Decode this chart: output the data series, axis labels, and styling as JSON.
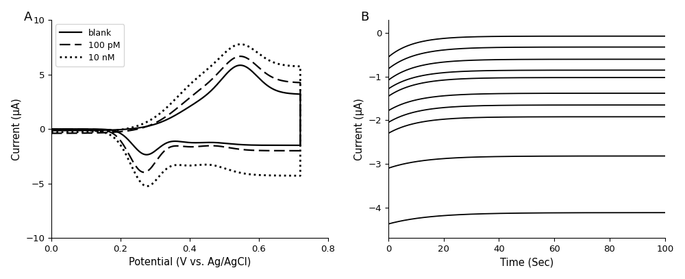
{
  "panel_A": {
    "label": "A",
    "xlabel": "Potential (V vs. Ag/AgCl)",
    "ylabel": "Current (μA)",
    "xlim": [
      0.0,
      0.8
    ],
    "ylim": [
      -10,
      10
    ],
    "xticks": [
      0.0,
      0.2,
      0.4,
      0.6,
      0.8
    ],
    "yticks": [
      -10,
      -5,
      0,
      5,
      10
    ]
  },
  "panel_B": {
    "label": "B",
    "xlabel": "Time (Sec)",
    "ylabel": "Current (μA)",
    "xlim": [
      0,
      100
    ],
    "ylim": [
      -4.7,
      0.3
    ],
    "xticks": [
      0,
      20,
      40,
      60,
      80,
      100
    ],
    "yticks": [
      -4,
      -3,
      -2,
      -1,
      0
    ],
    "n_curves": 11,
    "plateau_values": [
      -0.07,
      -0.32,
      -0.62,
      -0.85,
      -1.02,
      -1.38,
      -1.65,
      -1.92,
      -2.8,
      -4.12,
      -4.12
    ],
    "start_values": [
      -0.55,
      -0.8,
      -1.05,
      -1.25,
      -1.42,
      -1.75,
      -2.02,
      -2.28,
      -3.08,
      -4.35,
      -4.35
    ],
    "tau": [
      8.0,
      9.0,
      9.0,
      9.0,
      9.0,
      9.5,
      9.5,
      9.5,
      12.0,
      14.0,
      14.0
    ]
  }
}
